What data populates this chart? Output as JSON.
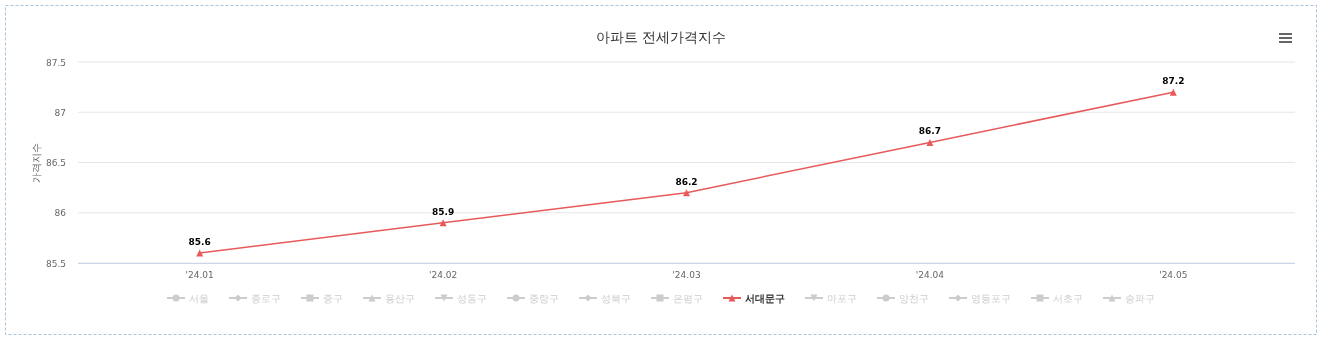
{
  "chart_data": {
    "type": "line",
    "title": "아파트 전세가격지수",
    "ylabel": "가격지수",
    "categories": [
      "'24.01",
      "'24.02",
      "'24.03",
      "'24.04",
      "'24.05"
    ],
    "ylim": [
      85.5,
      87.5
    ],
    "yticks": [
      85.5,
      86,
      86.5,
      87,
      87.5
    ],
    "grid": "y",
    "legend": "bottom",
    "data_labels": true,
    "series": [
      {
        "name": "서울",
        "color": "#cccccc",
        "marker": "circle",
        "values": [
          null,
          null,
          null,
          null,
          null
        ]
      },
      {
        "name": "종로구",
        "color": "#cccccc",
        "marker": "diamond",
        "values": [
          null,
          null,
          null,
          null,
          null
        ]
      },
      {
        "name": "중구",
        "color": "#cccccc",
        "marker": "square",
        "values": [
          null,
          null,
          null,
          null,
          null
        ]
      },
      {
        "name": "용산구",
        "color": "#cccccc",
        "marker": "triangle",
        "values": [
          null,
          null,
          null,
          null,
          null
        ]
      },
      {
        "name": "성동구",
        "color": "#cccccc",
        "marker": "triangle-down",
        "values": [
          null,
          null,
          null,
          null,
          null
        ]
      },
      {
        "name": "중랑구",
        "color": "#cccccc",
        "marker": "circle",
        "values": [
          null,
          null,
          null,
          null,
          null
        ]
      },
      {
        "name": "성북구",
        "color": "#cccccc",
        "marker": "diamond",
        "values": [
          null,
          null,
          null,
          null,
          null
        ]
      },
      {
        "name": "은평구",
        "color": "#cccccc",
        "marker": "square",
        "values": [
          null,
          null,
          null,
          null,
          null
        ]
      },
      {
        "name": "서대문구",
        "color": "#e8595a",
        "marker": "triangle",
        "values": [
          85.6,
          85.9,
          86.2,
          86.7,
          87.2
        ]
      },
      {
        "name": "마포구",
        "color": "#cccccc",
        "marker": "triangle-down",
        "values": [
          null,
          null,
          null,
          null,
          null
        ]
      },
      {
        "name": "양천구",
        "color": "#cccccc",
        "marker": "circle",
        "values": [
          null,
          null,
          null,
          null,
          null
        ]
      },
      {
        "name": "영등포구",
        "color": "#cccccc",
        "marker": "diamond",
        "values": [
          null,
          null,
          null,
          null,
          null
        ]
      },
      {
        "name": "서초구",
        "color": "#cccccc",
        "marker": "square",
        "values": [
          null,
          null,
          null,
          null,
          null
        ]
      },
      {
        "name": "송파구",
        "color": "#cccccc",
        "marker": "triangle",
        "values": [
          null,
          null,
          null,
          null,
          null
        ]
      }
    ]
  }
}
